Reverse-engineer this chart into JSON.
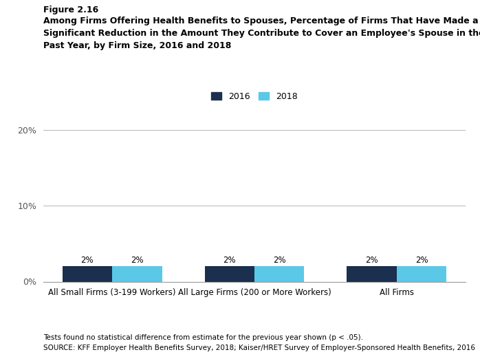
{
  "figure_label": "Figure 2.16",
  "title_line1": "Among Firms Offering Health Benefits to Spouses, Percentage of Firms That Have Made a",
  "title_line2": "Significant Reduction in the Amount They Contribute to Cover an Employee's Spouse in the",
  "title_line3": "Past Year, by Firm Size, 2016 and 2018",
  "categories": [
    "All Small Firms (3-199 Workers)",
    "All Large Firms (200 or More Workers)",
    "All Firms"
  ],
  "values_2016": [
    2,
    2,
    2
  ],
  "values_2018": [
    2,
    2,
    2
  ],
  "color_2016": "#1b2f4e",
  "color_2018": "#5bc8e8",
  "ylim": [
    0,
    20
  ],
  "yticks": [
    0,
    10,
    20
  ],
  "ytick_labels": [
    "0%",
    "10%",
    "20%"
  ],
  "bar_width": 0.35,
  "legend_labels": [
    "2016",
    "2018"
  ],
  "footnote1": "Tests found no statistical difference from estimate for the previous year shown (p < .05).",
  "footnote2": "SOURCE: KFF Employer Health Benefits Survey, 2018; Kaiser/HRET Survey of Employer-Sponsored Health Benefits, 2016",
  "background_color": "#ffffff"
}
